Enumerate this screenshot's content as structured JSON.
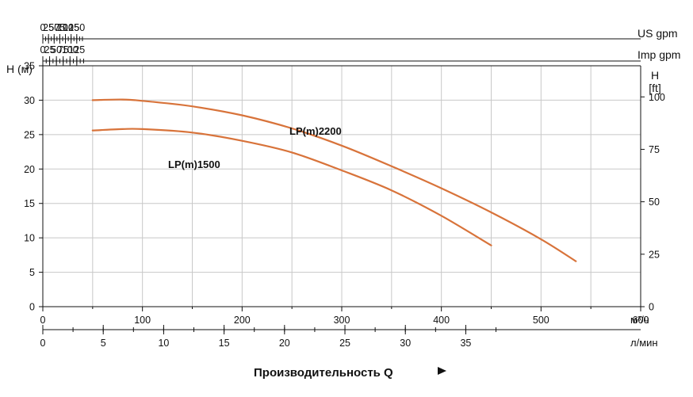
{
  "chart_data": {
    "type": "line",
    "left_axis": {
      "title": "H (м)",
      "min": 0,
      "max": 35,
      "step": 5,
      "ticks": [
        "0",
        "5",
        "10",
        "15",
        "20",
        "25",
        "30",
        "35"
      ]
    },
    "right_axis": {
      "title_line1": "H",
      "title_line2": "[ft]",
      "ticks": [
        {
          "value": 0,
          "label": "0"
        },
        {
          "value": 25,
          "label": "25"
        },
        {
          "value": 50,
          "label": "50"
        },
        {
          "value": 75,
          "label": "75"
        },
        {
          "value": 100,
          "label": "100"
        }
      ]
    },
    "axis_m3h": {
      "unit": "м³/ч",
      "min": 0,
      "max": 600,
      "ticks": [
        "0",
        "100",
        "200",
        "300",
        "400",
        "500",
        "600"
      ]
    },
    "axis_lmin": {
      "unit": "л/мин",
      "ticks": [
        {
          "value": 0,
          "label": "0"
        },
        {
          "value": 5,
          "label": "5"
        },
        {
          "value": 10,
          "label": "10"
        },
        {
          "value": 15,
          "label": "15"
        },
        {
          "value": 20,
          "label": "20"
        },
        {
          "value": 25,
          "label": "25"
        },
        {
          "value": 30,
          "label": "30"
        },
        {
          "value": 35,
          "label": "35"
        }
      ]
    },
    "axis_us_gpm": {
      "unit": "US gpm",
      "ticks": [
        {
          "value": 0,
          "label": "0"
        },
        {
          "value": 25,
          "label": "25"
        },
        {
          "value": 50,
          "label": "50"
        },
        {
          "value": 75,
          "label": "75"
        },
        {
          "value": 100,
          "label": "100"
        },
        {
          "value": 125,
          "label": "125"
        },
        {
          "value": 150,
          "label": "150"
        }
      ]
    },
    "axis_imp_gpm": {
      "unit": "Imp gpm",
      "ticks": [
        {
          "value": 0,
          "label": "0"
        },
        {
          "value": 25,
          "label": "25"
        },
        {
          "value": 50,
          "label": "50"
        },
        {
          "value": 75,
          "label": "75"
        },
        {
          "value": 100,
          "label": "100"
        },
        {
          "value": 125,
          "label": "125"
        }
      ]
    },
    "x_title": "Производительность Q",
    "series": [
      {
        "name": "LP(m)2200",
        "color": "#d8733a",
        "x": [
          50,
          80,
          100,
          150,
          200,
          250,
          300,
          350,
          400,
          450,
          500,
          535
        ],
        "y": [
          30.0,
          30.1,
          29.9,
          29.1,
          27.8,
          25.9,
          23.4,
          20.4,
          17.2,
          13.7,
          9.8,
          6.6
        ]
      },
      {
        "name": "LP(m)1500",
        "color": "#d8733a",
        "x": [
          50,
          80,
          100,
          150,
          200,
          250,
          300,
          350,
          400,
          450
        ],
        "y": [
          25.6,
          25.8,
          25.8,
          25.3,
          24.1,
          22.4,
          19.8,
          16.9,
          13.2,
          8.9
        ]
      }
    ],
    "grid": true
  }
}
